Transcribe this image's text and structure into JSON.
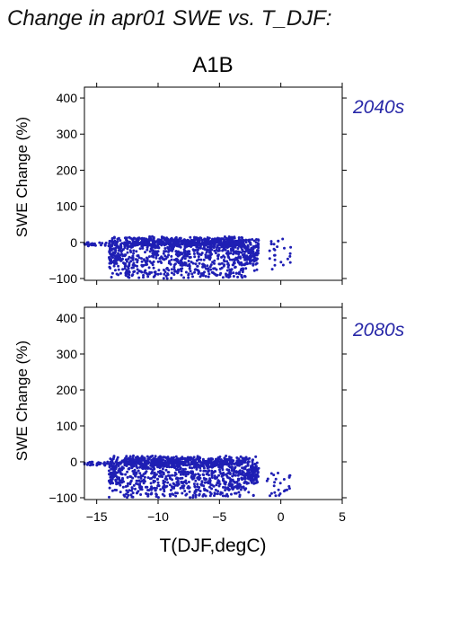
{
  "figure": {
    "title": "Change in apr01 SWE vs. T_DJF:",
    "scenario": "A1B",
    "point_color": "#1f1fb4",
    "period_label_color": "#2828a8"
  },
  "chart_data": [
    {
      "type": "scatter",
      "period": "2040s",
      "xlabel": "",
      "ylabel": "SWE Change (%)",
      "xlim": [
        -16,
        5
      ],
      "ylim": [
        -105,
        430
      ],
      "xticks": [
        -15,
        -10,
        -5,
        0,
        5
      ],
      "yticks": [
        -100,
        0,
        100,
        200,
        300,
        400
      ],
      "x_tick_labels_shown": false,
      "grid": false,
      "point_clusters": [
        {
          "x_range": [
            -14.0,
            -1.8
          ],
          "y_range": [
            -100,
            20
          ],
          "description": "dense band"
        },
        {
          "x_range": [
            -16.0,
            -14.0
          ],
          "y_range": [
            -10,
            0
          ],
          "description": "sparse left tail"
        },
        {
          "x_range": [
            -1.0,
            0.8
          ],
          "y_range": [
            -90,
            10
          ],
          "description": "sparse right tail"
        }
      ]
    },
    {
      "type": "scatter",
      "period": "2080s",
      "xlabel": "T(DJF,degC)",
      "ylabel": "SWE Change (%)",
      "xlim": [
        -16,
        5
      ],
      "ylim": [
        -105,
        430
      ],
      "xticks": [
        -15,
        -10,
        -5,
        0,
        5
      ],
      "xtick_labels": [
        "−15",
        "−10",
        "−5",
        "0",
        "5"
      ],
      "yticks": [
        -100,
        0,
        100,
        200,
        300,
        400
      ],
      "x_tick_labels_shown": true,
      "grid": false,
      "point_clusters": [
        {
          "x_range": [
            -14.0,
            -1.8
          ],
          "y_range": [
            -100,
            25
          ],
          "description": "dense band"
        },
        {
          "x_range": [
            -16.0,
            -14.0
          ],
          "y_range": [
            -10,
            0
          ],
          "description": "sparse left tail"
        },
        {
          "x_range": [
            -1.2,
            0.8
          ],
          "y_range": [
            -95,
            -30
          ],
          "description": "sparse right tail"
        }
      ]
    }
  ]
}
